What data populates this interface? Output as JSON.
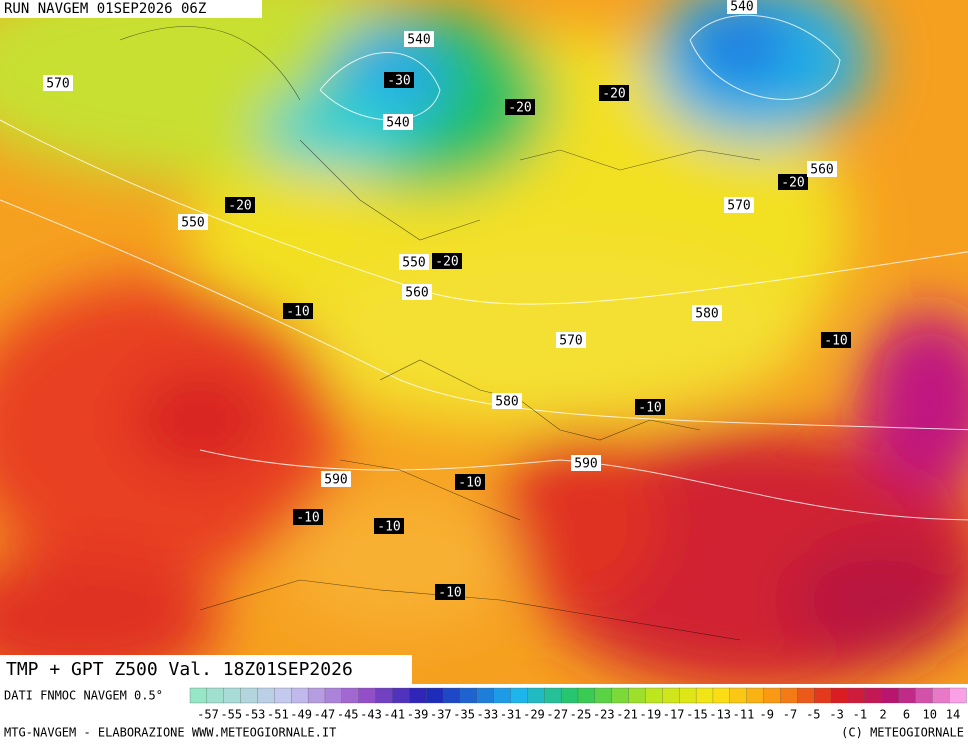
{
  "header": {
    "run": "RUN NAVGEM 01SEP2026 06Z"
  },
  "map": {
    "labels": [
      "540",
      "-30",
      "540",
      "-20",
      "-20",
      "540",
      "570",
      "-20",
      "550",
      "-20",
      "560",
      "570",
      "550",
      "-20",
      "560",
      "-10",
      "570",
      "580",
      "-10",
      "580",
      "-10",
      "590",
      "590",
      "-10",
      "-10",
      "-10",
      "-10"
    ]
  },
  "title": "TMP + GPT Z500 Val. 18Z01SEP2026",
  "legend": {
    "source": "DATI FNMOC NAVGEM 0.5°",
    "labels": [
      "-57",
      "-55",
      "-53",
      "-51",
      "-49",
      "-47",
      "-45",
      "-43",
      "-41",
      "-39",
      "-37",
      "-35",
      "-33",
      "-31",
      "-29",
      "-27",
      "-25",
      "-23",
      "-21",
      "-19",
      "-17",
      "-15",
      "-13",
      "-11",
      "-9",
      "-7",
      "-5",
      "-3",
      "-1",
      "2",
      "6",
      "10",
      "14"
    ]
  },
  "footer": {
    "left": "MTG-NAVGEM - ELABORAZIONE WWW.METEOGIORNALE.IT",
    "right": "(C) METEOGIORNALE"
  }
}
